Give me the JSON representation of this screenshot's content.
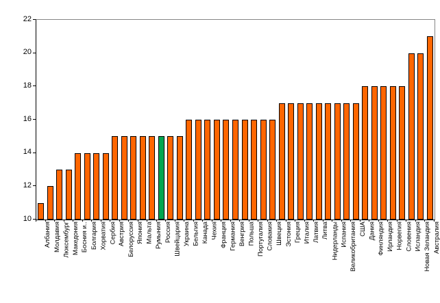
{
  "chart_data": {
    "type": "bar",
    "title": "",
    "xlabel": "",
    "ylabel": "",
    "categories": [
      "Албания",
      "Молдавия",
      "Люксембург",
      "Македония",
      "Босния и..",
      "Болгария",
      "Хорватия",
      "Сербия",
      "Австрия",
      "Белоруссия",
      "Япония",
      "Мальта",
      "Румыния",
      "Россия",
      "Швейцария",
      "Украина",
      "Бельгия",
      "Канада",
      "Чехия",
      "Франция",
      "Германия",
      "Венгрия",
      "Польша",
      "Португалия",
      "Словакия",
      "Швеция",
      "Эстония",
      "Греция",
      "Италия",
      "Латвия",
      "Литва",
      "Нидерланды",
      "Испания",
      "Великобритания",
      "США",
      "Дания",
      "Финляндия",
      "Ирландия",
      "Норвегия",
      "Словения",
      "Исландия",
      "Новая Зеландия",
      "Австралия"
    ],
    "values": [
      11,
      12,
      13,
      13,
      14,
      14,
      14,
      14,
      15,
      15,
      15,
      15,
      15,
      15,
      15,
      15,
      16,
      16,
      16,
      16,
      16,
      16,
      16,
      16,
      16,
      16,
      17,
      17,
      17,
      17,
      17,
      17,
      17,
      17,
      17,
      18,
      18,
      18,
      18,
      18,
      20,
      20,
      21
    ],
    "highlight_category": "Россия",
    "ylim": [
      10,
      22
    ],
    "yticks": [
      10,
      12,
      14,
      16,
      18,
      20,
      22
    ],
    "grid": false,
    "legend_position": "none",
    "colors": {
      "bar_fill": "#FF6600",
      "bar_border": "#000000",
      "highlight_fill": "#00A651",
      "axis_line": "#000000",
      "frame_line": "#848484",
      "tick_label": "#000000",
      "background": "#FFFFFF"
    }
  }
}
